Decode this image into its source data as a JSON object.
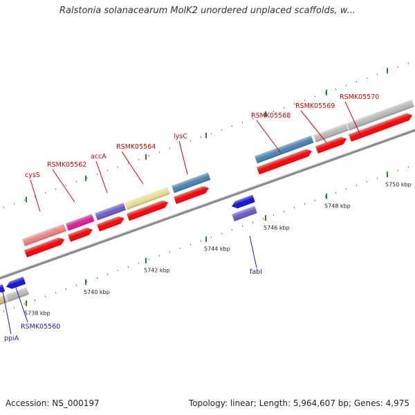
{
  "title": "Ralstonia solanacearum MolK2 unordered unplaced scaffolds, w...",
  "footer": {
    "accession": "Accession: NS_000197",
    "summary": "Topology: linear; Length: 5,964,607 bp; Genes: 4,975"
  },
  "scale": {
    "ticks": [
      {
        "label": "5738 kbp",
        "kbp": 5738
      },
      {
        "label": "5740 kbp",
        "kbp": 5740
      },
      {
        "label": "5742 kbp",
        "kbp": 5742
      },
      {
        "label": "5744 kbp",
        "kbp": 5744
      },
      {
        "label": "5746 kbp",
        "kbp": 5746
      },
      {
        "label": "5748 kbp",
        "kbp": 5748
      },
      {
        "label": "5750 kbp",
        "kbp": 5750
      }
    ]
  },
  "genes_forward": [
    {
      "label": "cysS",
      "color": "#f08080"
    },
    {
      "label": "RSMK05562",
      "color": "#e0189a"
    },
    {
      "label": "accA",
      "color": "#6a5acd"
    },
    {
      "label": "RSMK05564",
      "color": "#e8e08a"
    },
    {
      "label": "lysC",
      "color": "#4682b4"
    },
    {
      "label": "RSMK05568",
      "color": "#4682b4"
    },
    {
      "label": "RSMK05569",
      "color": "#b8b8b8"
    },
    {
      "label": "RSMK05570",
      "color": "#b8b8b8"
    }
  ],
  "genes_reverse": [
    {
      "label": "ppiA",
      "color": "#1010e0"
    },
    {
      "label": "RSMK05560",
      "color": "#1010e0"
    },
    {
      "label": "fabI",
      "color": "#1010e0"
    }
  ],
  "colors": {
    "cds": "#ff0000",
    "backbone": "#888888",
    "tick": "#1a8a1a"
  }
}
